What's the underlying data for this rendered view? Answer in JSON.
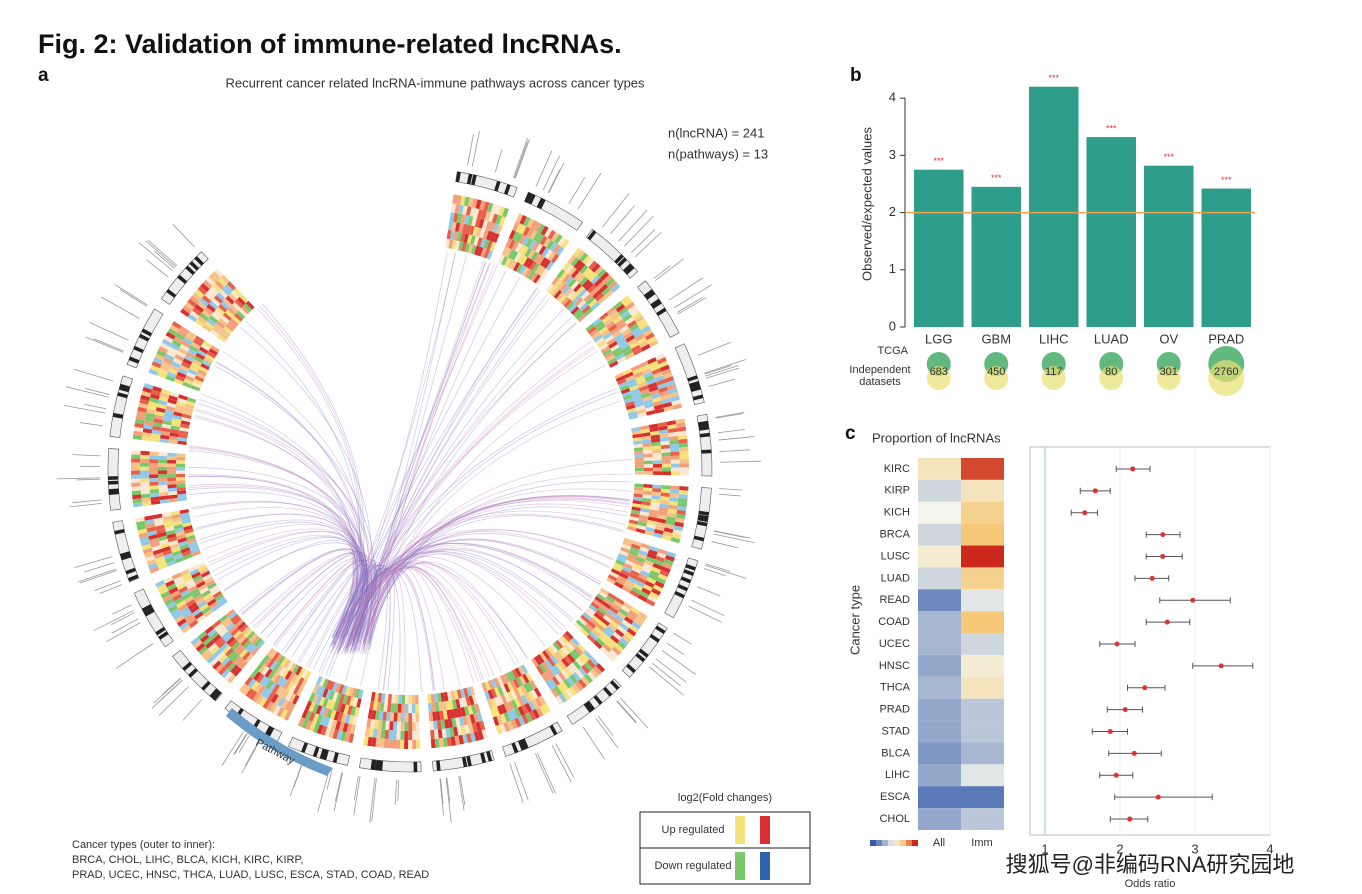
{
  "figure_title": "Fig. 2: Validation of immune-related lncRNAs.",
  "panel_labels": [
    "a",
    "b",
    "c"
  ],
  "circos": {
    "title": "Recurrent cancer related lncRNA-immune pathways across cancer types",
    "annotations": [
      "n(lncRNA) = 241",
      "n(pathways) = 13"
    ],
    "track_label": "Pathway",
    "legend": {
      "title": "log2(Fold changes)",
      "entries": [
        "Up regulated",
        "Down regulated"
      ]
    },
    "cancer_types_note": [
      "Cancer types (outer to inner):",
      "BRCA, CHOL, LIHC, BLCA, KICH, KIRC, KIRP,",
      "PRAD, UCEC, HNSC, THCA, LUAD, LUSC, ESCA, STAD, COAD, READ"
    ]
  },
  "chart_data": [
    {
      "type": "bar",
      "y_label": "Observed/expected values",
      "categories": [
        "LGG",
        "GBM",
        "LIHC",
        "LUAD",
        "OV",
        "PRAD"
      ],
      "values": [
        2.75,
        2.45,
        4.2,
        3.32,
        2.82,
        2.42
      ],
      "value_annotations": [
        "***",
        "***",
        "***",
        "***",
        "***",
        "***"
      ],
      "color": "#2e9e8a",
      "reference_line": 2,
      "reference_color": "#f0a050",
      "ylim": [
        0,
        4.3
      ],
      "yticks": [
        0,
        1,
        2,
        3,
        4
      ],
      "row_labels": [
        "TCGA",
        "Independent datasets"
      ],
      "overlap_counts": [
        683,
        450,
        117,
        80,
        301,
        2760
      ]
    },
    {
      "type": "heatmap",
      "title": "Proportion of lncRNAs",
      "y_label": "Cancer type",
      "categories": [
        "KIRC",
        "KIRP",
        "KICH",
        "BRCA",
        "LUSC",
        "LUAD",
        "READ",
        "COAD",
        "UCEC",
        "HNSC",
        "THCA",
        "PRAD",
        "STAD",
        "BLCA",
        "LIHC",
        "ESCA",
        "CHOL"
      ],
      "columns": [
        "All",
        "Imm"
      ],
      "series": [
        {
          "name": "All",
          "values": [
            0.6,
            0.4,
            0.5,
            0.4,
            0.55,
            0.4,
            0.15,
            0.3,
            0.3,
            0.25,
            0.3,
            0.25,
            0.25,
            0.2,
            0.25,
            0.1,
            0.25
          ]
        },
        {
          "name": "Imm",
          "values": [
            0.95,
            0.6,
            0.7,
            0.75,
            1.0,
            0.7,
            0.45,
            0.75,
            0.4,
            0.55,
            0.6,
            0.35,
            0.35,
            0.3,
            0.45,
            0.1,
            0.35
          ]
        }
      ]
    },
    {
      "type": "forest",
      "x_label": "Odds ratio",
      "values": [
        2.17,
        1.67,
        1.53,
        2.57,
        2.57,
        2.43,
        2.97,
        2.63,
        1.96,
        3.35,
        2.33,
        2.07,
        1.87,
        2.19,
        1.95,
        2.51,
        2.13
      ],
      "lower": [
        1.95,
        1.47,
        1.35,
        2.35,
        2.35,
        2.2,
        2.53,
        2.35,
        1.73,
        2.97,
        2.1,
        1.83,
        1.63,
        1.85,
        1.73,
        1.93,
        1.87
      ],
      "upper": [
        2.4,
        1.87,
        1.7,
        2.8,
        2.83,
        2.65,
        3.47,
        2.93,
        2.2,
        3.77,
        2.6,
        2.3,
        2.1,
        2.55,
        2.17,
        3.23,
        2.37
      ],
      "color": "#d33",
      "reference_line": 1,
      "xlim": [
        0.8,
        4.0
      ],
      "xticks": [
        1,
        2,
        3,
        4
      ]
    }
  ],
  "watermark": "搜狐号@非编码RNA研究园地"
}
